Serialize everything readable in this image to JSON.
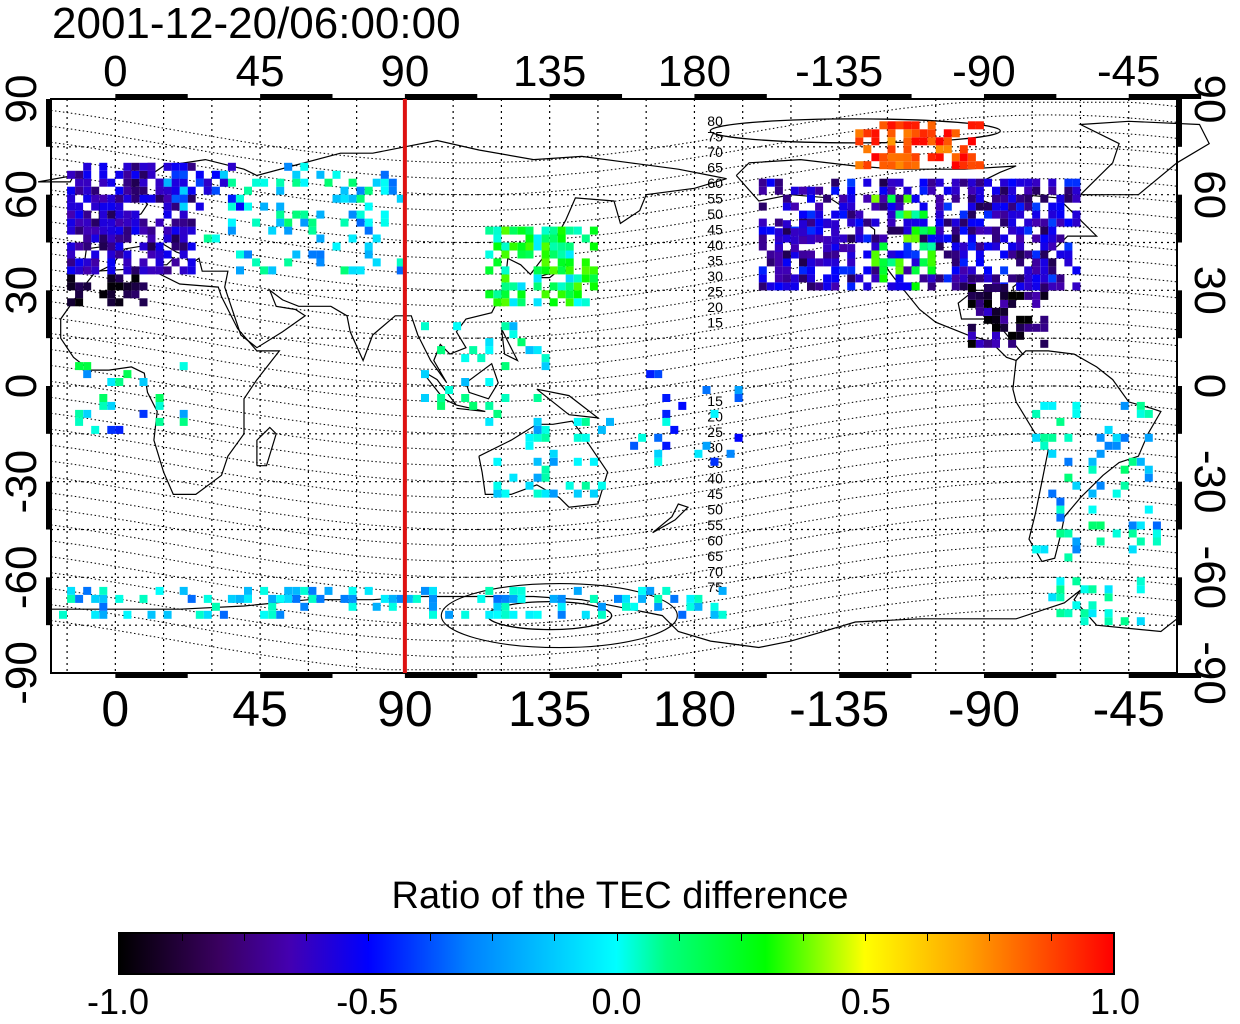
{
  "title": "2001-12-20/06:00:00",
  "map": {
    "x_tick_labels": [
      "0",
      "45",
      "90",
      "135",
      "180",
      "-135",
      "-90",
      "-45"
    ],
    "y_tick_labels": [
      "90",
      "60",
      "30",
      "0",
      "-30",
      "-60",
      "-90"
    ],
    "lon_range": [
      -20,
      330
    ],
    "lat_range": [
      -90,
      90
    ],
    "grid": true,
    "meridian_marker_longitude": 90,
    "meridian_marker_color": "#dd1111",
    "contour_labels_north": [
      "80",
      "75",
      "70",
      "65",
      "60",
      "55",
      "50",
      "45",
      "40",
      "35",
      "30",
      "25",
      "20",
      "15"
    ],
    "contour_labels_south": [
      "15",
      "20",
      "25",
      "30",
      "35",
      "40",
      "45",
      "50",
      "55",
      "60",
      "65",
      "70",
      "75"
    ]
  },
  "colorbar": {
    "title": "Ratio of the TEC difference",
    "tick_labels": [
      "-1.0",
      "-0.5",
      "0.0",
      "0.5",
      "1.0"
    ],
    "range": [
      -1.0,
      1.0
    ],
    "colors": [
      "#000000",
      "#4400b0",
      "#0000ff",
      "#00ffff",
      "#00ff00",
      "#ffff00",
      "#ff0000"
    ]
  }
}
